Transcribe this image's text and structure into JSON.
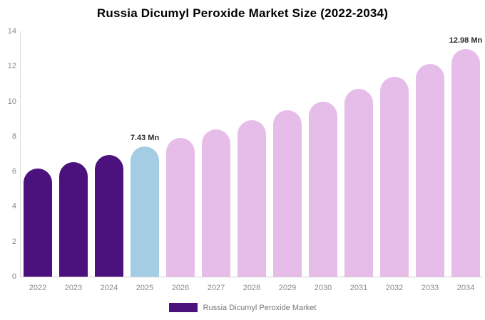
{
  "title": "Russia Dicumyl Peroxide Market Size (2022-2034)",
  "legend": {
    "label": "Russia Dicumyl Peroxide Market",
    "swatch_color": "#4B127E"
  },
  "colors": {
    "historical_bar": "#4B127E",
    "base_year_bar": "#A4CCE3",
    "forecast_bar": "#E6BDE9",
    "axis_line": "#dcdcdc",
    "axis_text": "#8a8a8a",
    "title_text": "#000000",
    "value_label_text": "#2b2b2b"
  },
  "chart_data": {
    "type": "bar",
    "title": "Russia Dicumyl Peroxide Market Size (2022-2034)",
    "xlabel": "",
    "ylabel": "",
    "ylim": [
      0,
      14
    ],
    "yticks": [
      0,
      2,
      4,
      6,
      8,
      10,
      12,
      14
    ],
    "grid": false,
    "legend_position": "bottom",
    "categories": [
      "2022",
      "2023",
      "2024",
      "2025",
      "2026",
      "2027",
      "2028",
      "2029",
      "2030",
      "2031",
      "2032",
      "2033",
      "2034"
    ],
    "values": [
      6.15,
      6.55,
      6.95,
      7.43,
      7.9,
      8.42,
      8.92,
      9.5,
      10.0,
      10.7,
      11.42,
      12.15,
      12.98
    ],
    "bar_colors": [
      "#4B127E",
      "#4B127E",
      "#4B127E",
      "#A4CCE3",
      "#E6BDE9",
      "#E6BDE9",
      "#E6BDE9",
      "#E6BDE9",
      "#E6BDE9",
      "#E6BDE9",
      "#E6BDE9",
      "#E6BDE9",
      "#E6BDE9"
    ],
    "annotations": [
      {
        "category": "2025",
        "text": "7.43 Mn"
      },
      {
        "category": "2034",
        "text": "12.98 Mn"
      }
    ],
    "series": [
      {
        "name": "Russia Dicumyl Peroxide Market",
        "values": [
          6.15,
          6.55,
          6.95,
          7.43,
          7.9,
          8.42,
          8.92,
          9.5,
          10.0,
          10.7,
          11.42,
          12.15,
          12.98
        ]
      }
    ]
  }
}
